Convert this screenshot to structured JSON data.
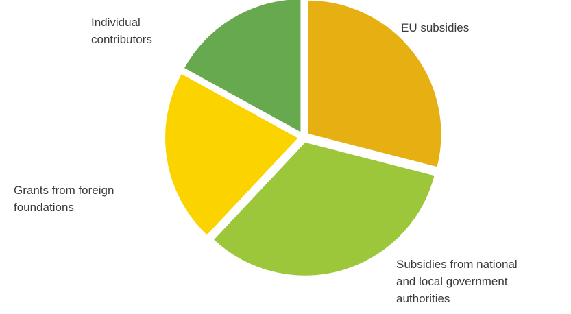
{
  "chart_data": {
    "type": "pie",
    "title": "",
    "slices": [
      {
        "label_lines": [
          "EU subsidies"
        ],
        "value": 29,
        "color": "#E6B012"
      },
      {
        "label_lines": [
          "Subsidies from national",
          "and local government",
          "authorities"
        ],
        "value": 33,
        "color": "#9DC73B"
      },
      {
        "label_lines": [
          "Grants from foreign",
          "foundations"
        ],
        "value": 21,
        "color": "#FBD400"
      },
      {
        "label_lines": [
          "Individual",
          "contributors"
        ],
        "value": 17,
        "color": "#67A94E"
      }
    ],
    "legend": "none"
  }
}
